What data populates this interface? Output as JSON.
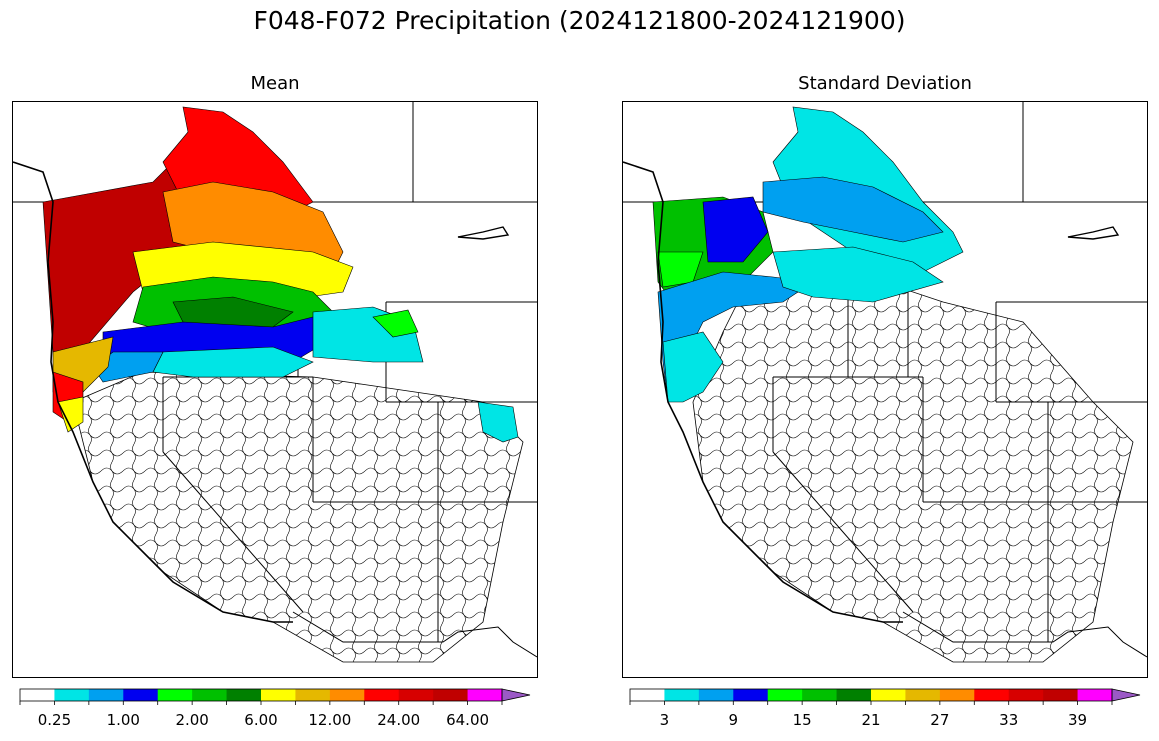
{
  "figure": {
    "title": "F048-F072 Precipitation (2024121800-2024121900)"
  },
  "panels": [
    {
      "title": "Mean",
      "colorbar": {
        "colors": [
          "#ffffff",
          "#00e5e5",
          "#00a0f0",
          "#0000f0",
          "#00ff00",
          "#00c000",
          "#008000",
          "#ffff00",
          "#e5b800",
          "#ff8c00",
          "#ff0000",
          "#d70000",
          "#c00000",
          "#ff00ff",
          "#9b59c6"
        ],
        "tick_labels": [
          "0.25",
          "1.00",
          "2.00",
          "6.00",
          "12.00",
          "24.00",
          "64.00"
        ],
        "extend": "max"
      }
    },
    {
      "title": "Standard Deviation",
      "colorbar": {
        "colors": [
          "#ffffff",
          "#00e5e5",
          "#00a0f0",
          "#0000f0",
          "#00ff00",
          "#00c000",
          "#008000",
          "#ffff00",
          "#e5b800",
          "#ff8c00",
          "#ff0000",
          "#d70000",
          "#c00000",
          "#ff00ff",
          "#9b59c6"
        ],
        "tick_labels": [
          "3",
          "9",
          "15",
          "21",
          "27",
          "33",
          "39"
        ],
        "extend": "max"
      }
    }
  ]
}
